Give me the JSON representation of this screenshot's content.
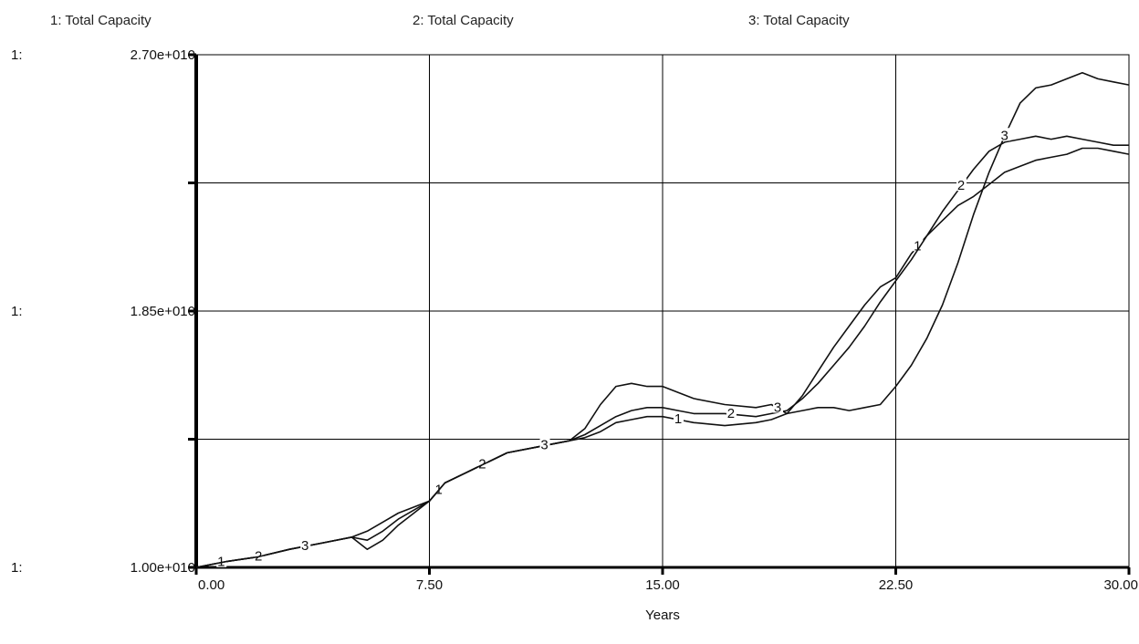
{
  "chart_data": {
    "type": "line",
    "legend": [
      "1: Total Capacity",
      "2: Total Capacity",
      "3: Total Capacity"
    ],
    "xlabel": "Years",
    "x_ticks": [
      "0.00",
      "7.50",
      "15.00",
      "22.50",
      "30.00"
    ],
    "xlim": [
      0,
      30
    ],
    "ylim": [
      10000000000,
      27000000000
    ],
    "y_ticks": [
      "1.00e+010",
      "1.85e+010",
      "2.70e+010"
    ],
    "y_axis_prefix": "1:",
    "grid": true,
    "series": [
      {
        "name": "1",
        "marker": "1",
        "x": [
          0,
          1,
          2,
          3,
          4,
          5,
          5.5,
          6,
          6.5,
          7,
          7.5,
          8,
          9,
          10,
          11,
          12,
          12.5,
          13,
          13.5,
          14,
          14.5,
          15,
          15.5,
          16,
          17,
          18,
          18.5,
          19,
          19.5,
          20,
          20.5,
          21,
          21.5,
          22,
          22.5,
          23,
          23.5,
          24,
          24.5,
          25,
          25.5,
          26,
          26.5,
          27,
          27.5,
          28,
          28.5,
          29,
          29.5,
          30
        ],
        "y": [
          10000000000,
          10200000000,
          10350000000,
          10600000000,
          10800000000,
          11000000000,
          10900000000,
          11200000000,
          11600000000,
          11900000000,
          12200000000,
          12800000000,
          13300000000,
          13800000000,
          14000000000,
          14200000000,
          14300000000,
          14500000000,
          14800000000,
          14900000000,
          15000000000,
          15000000000,
          14900000000,
          14800000000,
          14700000000,
          14800000000,
          14900000000,
          15100000000,
          15700000000,
          16500000000,
          17300000000,
          18000000000,
          18700000000,
          19300000000,
          19600000000,
          20400000000,
          21000000000,
          21500000000,
          22000000000,
          22300000000,
          22700000000,
          23100000000,
          23300000000,
          23500000000,
          23600000000,
          23700000000,
          23900000000,
          23900000000,
          23800000000,
          23700000000
        ]
      },
      {
        "name": "2",
        "marker": "2",
        "x": [
          0,
          1,
          2,
          3,
          4,
          5,
          5.5,
          6,
          6.5,
          7,
          7.5,
          8,
          9,
          10,
          11,
          12,
          12.5,
          13,
          13.5,
          14,
          14.5,
          15,
          15.5,
          16,
          17,
          18,
          18.5,
          19,
          19.5,
          20,
          20.5,
          21,
          21.5,
          22,
          22.5,
          23,
          23.5,
          24,
          24.5,
          25,
          25.5,
          26,
          26.5,
          27,
          27.5,
          28,
          28.5,
          29,
          29.5,
          30
        ],
        "y": [
          10000000000,
          10200000000,
          10350000000,
          10600000000,
          10800000000,
          11000000000,
          10600000000,
          10900000000,
          11400000000,
          11800000000,
          12200000000,
          12800000000,
          13300000000,
          13800000000,
          14000000000,
          14200000000,
          14400000000,
          14700000000,
          15000000000,
          15200000000,
          15300000000,
          15300000000,
          15200000000,
          15100000000,
          15100000000,
          15000000000,
          15100000000,
          15200000000,
          15600000000,
          16100000000,
          16700000000,
          17300000000,
          18000000000,
          18800000000,
          19500000000,
          20200000000,
          21000000000,
          21800000000,
          22500000000,
          23200000000,
          23800000000,
          24100000000,
          24200000000,
          24300000000,
          24200000000,
          24300000000,
          24200000000,
          24100000000,
          24000000000,
          24000000000
        ]
      },
      {
        "name": "3",
        "marker": "3",
        "x": [
          0,
          1,
          2,
          3,
          4,
          5,
          5.5,
          6,
          6.5,
          7,
          7.5,
          8,
          9,
          10,
          11,
          12,
          12.5,
          13,
          13.5,
          14,
          14.5,
          15,
          15.5,
          16,
          17,
          18,
          18.5,
          19,
          19.5,
          20,
          20.5,
          21,
          21.5,
          22,
          22.5,
          23,
          23.5,
          24,
          24.5,
          25,
          25.5,
          26,
          26.5,
          27,
          27.5,
          28,
          28.5,
          29,
          29.5,
          30
        ],
        "y": [
          10000000000,
          10200000000,
          10350000000,
          10600000000,
          10800000000,
          11000000000,
          11200000000,
          11500000000,
          11800000000,
          12000000000,
          12200000000,
          12800000000,
          13300000000,
          13800000000,
          14000000000,
          14200000000,
          14600000000,
          15400000000,
          16000000000,
          16100000000,
          16000000000,
          16000000000,
          15800000000,
          15600000000,
          15400000000,
          15300000000,
          15400000000,
          15100000000,
          15200000000,
          15300000000,
          15300000000,
          15200000000,
          15300000000,
          15400000000,
          16000000000,
          16700000000,
          17600000000,
          18700000000,
          20100000000,
          21700000000,
          23100000000,
          24300000000,
          25400000000,
          25900000000,
          26000000000,
          26200000000,
          26400000000,
          26200000000,
          26100000000,
          26000000000
        ]
      }
    ]
  }
}
